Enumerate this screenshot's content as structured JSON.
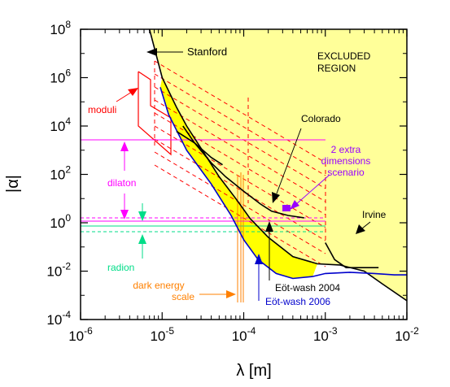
{
  "chart_data": {
    "type": "line",
    "title": "",
    "xlabel": "λ [m]",
    "ylabel": "|α|",
    "xscale": "log",
    "yscale": "log",
    "xlim": [
      1e-06,
      0.01
    ],
    "ylim": [
      0.0001,
      100000000.0
    ],
    "xticks": [
      {
        "v": 1e-06,
        "b": "10",
        "e": "-6"
      },
      {
        "v": 1e-05,
        "b": "10",
        "e": "-5"
      },
      {
        "v": 0.0001,
        "b": "10",
        "e": "-4"
      },
      {
        "v": 0.001,
        "b": "10",
        "e": "-3"
      },
      {
        "v": 0.01,
        "b": "10",
        "e": "-2"
      }
    ],
    "yticks": [
      {
        "v": 0.0001,
        "b": "10",
        "e": "-4"
      },
      {
        "v": 0.01,
        "b": "10",
        "e": "-2"
      },
      {
        "v": 1.0,
        "b": "10",
        "e": "0"
      },
      {
        "v": 100.0,
        "b": "10",
        "e": "2"
      },
      {
        "v": 10000.0,
        "b": "10",
        "e": "4"
      },
      {
        "v": 1000000.0,
        "b": "10",
        "e": "6"
      },
      {
        "v": 100000000.0,
        "b": "10",
        "e": "8"
      }
    ],
    "colors": {
      "excluded_fill": "#ffff99",
      "yellow_band": "#ffff00",
      "limit": "#000000",
      "eotwash2006": "#0000cc",
      "moduli": "#ff0000",
      "dilaton": "#ff00ff",
      "radion": "#00dd88",
      "dark_energy": "#ff8000",
      "extra_dim": "#9900ff"
    },
    "series": [
      {
        "name": "Stanford",
        "color": "#000000",
        "points": [
          [
            7e-06,
            100000000.0
          ],
          [
            1e-05,
            1000000.0
          ],
          [
            1.5e-05,
            60000.0
          ],
          [
            2e-05,
            10000.0
          ],
          [
            3e-05,
            1200.0
          ],
          [
            5e-05,
            80
          ],
          [
            8e-05,
            10
          ],
          [
            0.00012,
            1.5
          ],
          [
            0.0002,
            0.25
          ],
          [
            0.0004,
            0.04
          ],
          [
            0.0008,
            0.02
          ],
          [
            0.0015,
            0.018
          ],
          [
            0.003,
            0.01
          ],
          [
            0.005,
            0.003
          ],
          [
            0.01,
            0.0006
          ]
        ]
      },
      {
        "name": "Eöt-wash 2006",
        "color": "#0000cc",
        "points": [
          [
            9.5e-06,
            400000.0
          ],
          [
            1.2e-05,
            30000.0
          ],
          [
            2e-05,
            1000.0
          ],
          [
            4e-05,
            40
          ],
          [
            7e-05,
            2
          ],
          [
            0.0001,
            0.2
          ],
          [
            0.00015,
            0.03
          ],
          [
            0.00025,
            0.008
          ],
          [
            0.0004,
            0.005
          ],
          [
            0.0007,
            0.006
          ],
          [
            0.001,
            0.008
          ],
          [
            0.002,
            0.009
          ],
          [
            0.004,
            0.008
          ],
          [
            0.007,
            0.007
          ],
          [
            0.01,
            0.007
          ]
        ]
      },
      {
        "name": "Colorado",
        "color": "#000000",
        "points": [
          [
            1.8e-05,
            10000.0
          ],
          [
            2.5e-05,
            2000.0
          ],
          [
            4e-05,
            300
          ],
          [
            6e-05,
            80
          ],
          [
            0.0001,
            20
          ],
          [
            0.00016,
            6
          ],
          [
            0.00022,
            3
          ],
          [
            0.00035,
            2
          ],
          [
            0.00055,
            1.6
          ]
        ]
      },
      {
        "name": "Irvine",
        "color": "#000000",
        "points": [
          [
            0.001,
            0.15
          ],
          [
            0.0013,
            0.03
          ],
          [
            0.0018,
            0.014
          ],
          [
            0.003,
            0.014
          ],
          [
            0.0045,
            0.014
          ]
        ]
      },
      {
        "name": "Eöt-wash 2004",
        "color": "#000000",
        "points": [
          [
            1.5e-05,
            6000.0
          ],
          [
            2.5e-05,
            2000.0
          ],
          [
            4e-05,
            500
          ],
          [
            5.5e-05,
            250
          ]
        ]
      }
    ],
    "annotations": {
      "excluded_region": [
        "EXCLUDED",
        "REGION"
      ],
      "stanford": "Stanford",
      "moduli": "moduli",
      "colorado": "Colorado",
      "extra_dimensions": [
        "2 extra",
        "dimensions",
        "scenario"
      ],
      "dilaton": "dilaton",
      "irvine": "Irvine",
      "radion": "radion",
      "dark_energy": [
        "dark energy",
        "scale"
      ],
      "eotwash2004": "Eöt-wash 2004",
      "eotwash2006": "Eöt-wash 2006"
    }
  }
}
